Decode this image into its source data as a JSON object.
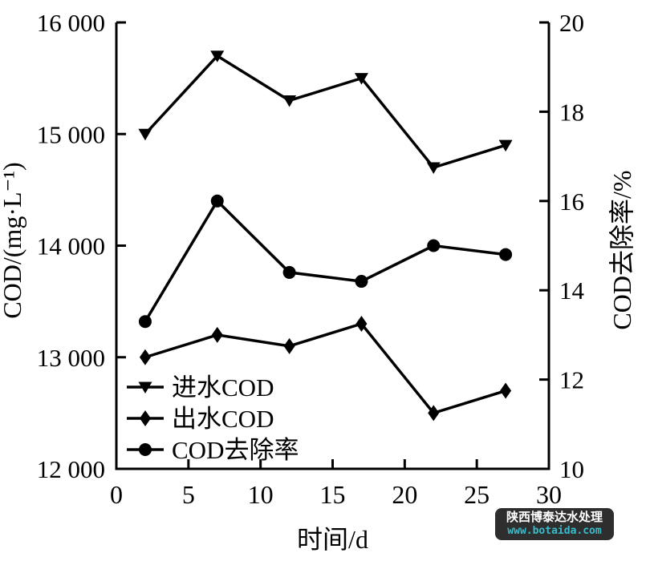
{
  "chart_data": {
    "type": "line",
    "x": [
      2,
      7,
      12,
      17,
      22,
      27
    ],
    "series": [
      {
        "name": "进水COD",
        "axis": "left",
        "marker": "triangle-down",
        "color": "#000000",
        "values": [
          15000,
          15700,
          15300,
          15500,
          14700,
          14900
        ]
      },
      {
        "name": "出水COD",
        "axis": "left",
        "marker": "diamond",
        "color": "#000000",
        "values": [
          13000,
          13200,
          13100,
          13300,
          12500,
          12700
        ]
      },
      {
        "name": "COD去除率",
        "axis": "right",
        "marker": "circle",
        "color": "#000000",
        "values": [
          13.3,
          16.0,
          14.4,
          14.2,
          15.0,
          14.8
        ]
      }
    ],
    "xlabel": "时间/d",
    "ylabel_left": "COD/(mg·L⁻¹)",
    "ylabel_right": "COD去除率/%",
    "xlim": [
      0,
      30
    ],
    "ylim_left": [
      12000,
      16000
    ],
    "ylim_right": [
      10,
      20
    ],
    "xticks": {
      "values": [
        0,
        5,
        10,
        15,
        20,
        25,
        30
      ],
      "labels": [
        "0",
        "5",
        "10",
        "15",
        "20",
        "25",
        "30"
      ]
    },
    "yticks_left": {
      "values": [
        12000,
        13000,
        14000,
        15000,
        16000
      ],
      "labels": [
        "12 000",
        "13 000",
        "14 000",
        "15 000",
        "16 000"
      ]
    },
    "yticks_right": {
      "values": [
        10,
        12,
        14,
        16,
        18,
        20
      ],
      "labels": [
        "10",
        "12",
        "14",
        "16",
        "18",
        "20"
      ]
    },
    "grid": false,
    "legend_position": "inside-bottom-left",
    "axis_color": "#000000",
    "background": "#ffffff"
  },
  "watermark": {
    "line1": "陕西博泰达水处理",
    "line2": "www.botaida.com",
    "bg": "#2e2e2e",
    "text_color": "#ffffff",
    "link_color": "#38bccb"
  }
}
